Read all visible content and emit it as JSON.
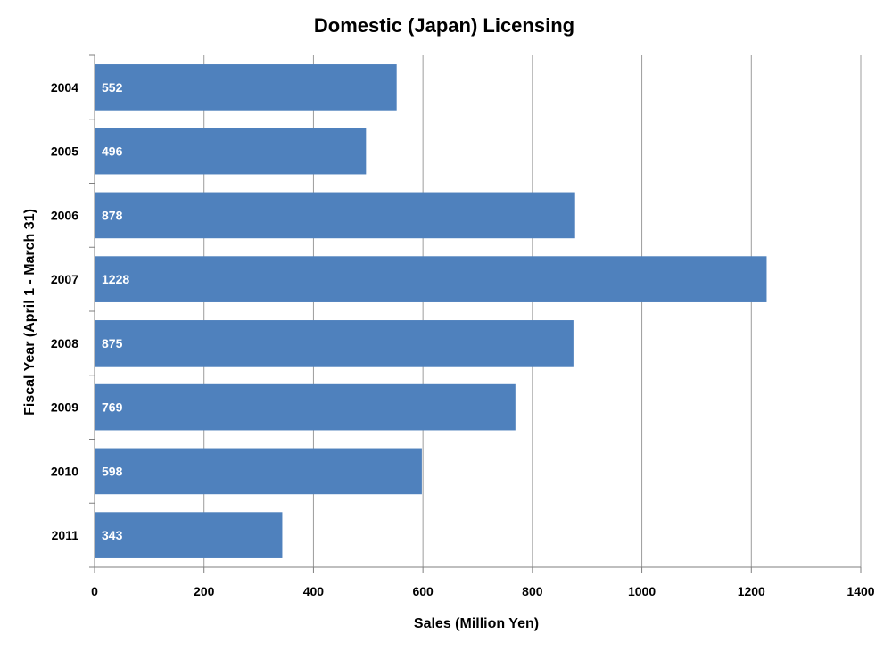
{
  "chart_data": {
    "type": "bar",
    "orientation": "horizontal",
    "title": "Domestic (Japan) Licensing",
    "xlabel": "Sales (Million Yen)",
    "ylabel": "Fiscal Year (April 1 - March 31)",
    "categories": [
      "2004",
      "2005",
      "2006",
      "2007",
      "2008",
      "2009",
      "2010",
      "2011"
    ],
    "values": [
      552,
      496,
      878,
      1228,
      875,
      769,
      598,
      343
    ],
    "xlim": [
      0,
      1400
    ],
    "x_ticks": [
      0,
      200,
      400,
      600,
      800,
      1000,
      1200,
      1400
    ],
    "grid": "vertical",
    "legend": "none",
    "data_labels": "inside-base",
    "colors": {
      "bar": "#4F81BD",
      "gridline": "#9C9C9C",
      "axis": "#7F7F7F",
      "data_label": "#FFFFFF",
      "text": "#000000"
    }
  }
}
